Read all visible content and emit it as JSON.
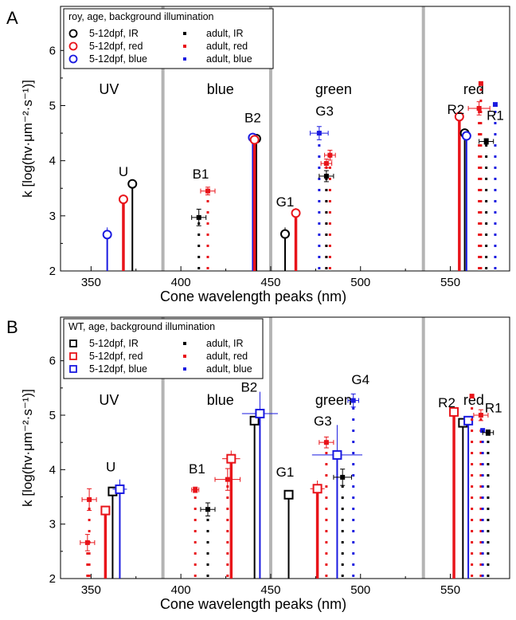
{
  "colors": {
    "ir": "#000000",
    "red": "#e8141a",
    "blue": "#1a1ae0",
    "separator": "#b4b4b4"
  },
  "chart_data": [
    {
      "type": "scatter",
      "panel": "A",
      "xlabel": "Cone wavelength peaks (nm)",
      "ylabel": "k [log(hv·μm⁻²·s⁻¹)]",
      "xlim": [
        333,
        583
      ],
      "ylim": [
        2,
        6.8
      ],
      "x_ticks": [
        350,
        400,
        450,
        500,
        550
      ],
      "y_ticks": [
        2,
        3,
        4,
        5,
        6
      ],
      "legend": {
        "title": "roy, age, background illumination",
        "entries": [
          "5-12dpf, IR",
          "5-12dpf, red",
          "5-12dpf, blue",
          "adult, IR",
          "adult, red",
          "adult, blue"
        ]
      },
      "regions": [
        {
          "label": "UV",
          "x": 360
        },
        {
          "label": "blue",
          "x": 422
        },
        {
          "label": "green",
          "x": 485
        },
        {
          "label": "red",
          "x": 563
        }
      ],
      "separators": [
        390,
        450,
        535
      ],
      "cone_labels": [
        {
          "label": "U",
          "x": 368,
          "y": 3.72
        },
        {
          "label": "B1",
          "x": 411,
          "y": 3.68
        },
        {
          "label": "B2",
          "x": 440,
          "y": 4.7
        },
        {
          "label": "G1",
          "x": 458,
          "y": 3.17
        },
        {
          "label": "G3",
          "x": 480,
          "y": 4.82
        },
        {
          "label": "R2",
          "x": 553,
          "y": 4.85
        },
        {
          "label": "R1",
          "x": 575,
          "y": 4.74
        }
      ],
      "larva": [
        {
          "group": "IR",
          "x": 373,
          "y": 3.58
        },
        {
          "group": "red",
          "x": 368,
          "y": 3.3
        },
        {
          "group": "blue",
          "x": 359,
          "y": 2.66,
          "xerr": 2,
          "yerr": 0.13
        },
        {
          "group": "IR",
          "x": 442,
          "y": 4.4
        },
        {
          "group": "blue",
          "x": 440,
          "y": 4.42
        },
        {
          "group": "red",
          "x": 441,
          "y": 4.38
        },
        {
          "group": "IR",
          "x": 458,
          "y": 2.67,
          "xerr": 2,
          "yerr": 0.12
        },
        {
          "group": "red",
          "x": 464,
          "y": 3.05,
          "xerr": 2,
          "yerr": 0.09
        },
        {
          "group": "red",
          "x": 555,
          "y": 4.8
        },
        {
          "group": "IR",
          "x": 558,
          "y": 4.5
        },
        {
          "group": "blue",
          "x": 559,
          "y": 4.45
        }
      ],
      "adult": [
        {
          "group": "IR",
          "x": 410,
          "y": 2.97,
          "xerr": 4,
          "yerr": 0.15
        },
        {
          "group": "red",
          "x": 415,
          "y": 3.45,
          "xerr": 4,
          "yerr": 0.07
        },
        {
          "group": "blue",
          "x": 477,
          "y": 4.5,
          "xerr": 5,
          "yerr": 0.12
        },
        {
          "group": "red",
          "x": 483,
          "y": 4.1,
          "xerr": 3,
          "yerr": 0.09
        },
        {
          "group": "red",
          "x": 481,
          "y": 3.95,
          "xerr": 3,
          "yerr": 0.08
        },
        {
          "group": "IR",
          "x": 481,
          "y": 3.72,
          "xerr": 4,
          "yerr": 0.1
        },
        {
          "group": "red",
          "x": 567,
          "y": 5.4
        },
        {
          "group": "red",
          "x": 566,
          "y": 4.95,
          "xerr": 6,
          "yerr": 0.12
        },
        {
          "group": "blue",
          "x": 575,
          "y": 5.02
        },
        {
          "group": "IR",
          "x": 570,
          "y": 4.35,
          "xerr": 4,
          "yerr": 0.05
        }
      ]
    },
    {
      "type": "scatter",
      "panel": "B",
      "xlabel": "Cone wavelength peaks (nm)",
      "ylabel": "k [log(hv·μm⁻²·s⁻¹)]",
      "xlim": [
        333,
        583
      ],
      "ylim": [
        2,
        6.8
      ],
      "x_ticks": [
        350,
        400,
        450,
        500,
        550
      ],
      "y_ticks": [
        2,
        3,
        4,
        5,
        6
      ],
      "legend": {
        "title": "WT, age, background illumination",
        "entries": [
          "5-12dpf, IR",
          "5-12dpf, red",
          "5-12dpf, blue",
          "adult, IR",
          "adult, red",
          "adult, blue"
        ]
      },
      "regions": [
        {
          "label": "UV",
          "x": 360
        },
        {
          "label": "blue",
          "x": 422
        },
        {
          "label": "green",
          "x": 485
        },
        {
          "label": "red",
          "x": 563
        }
      ],
      "separators": [
        390,
        450,
        535
      ],
      "cone_labels": [
        {
          "label": "U",
          "x": 361,
          "y": 3.97
        },
        {
          "label": "B1",
          "x": 409,
          "y": 3.93
        },
        {
          "label": "B2",
          "x": 438,
          "y": 5.43
        },
        {
          "label": "G1",
          "x": 458,
          "y": 3.87
        },
        {
          "label": "G3",
          "x": 479,
          "y": 4.81
        },
        {
          "label": "G4",
          "x": 500,
          "y": 5.57
        },
        {
          "label": "R2",
          "x": 548,
          "y": 5.15
        },
        {
          "label": "R1",
          "x": 574,
          "y": 5.05
        }
      ],
      "larva": [
        {
          "group": "IR",
          "x": 362,
          "y": 3.6
        },
        {
          "group": "red",
          "x": 358,
          "y": 3.25
        },
        {
          "group": "blue",
          "x": 366,
          "y": 3.64,
          "xerr": 4,
          "yerr": 0.18
        },
        {
          "group": "red",
          "x": 428,
          "y": 4.2,
          "xerr": 5,
          "yerr": 0.15
        },
        {
          "group": "IR",
          "x": 441,
          "y": 4.9
        },
        {
          "group": "blue",
          "x": 444,
          "y": 5.03,
          "xerr": 10,
          "yerr": 0.4
        },
        {
          "group": "IR",
          "x": 460,
          "y": 3.54,
          "xerr": 2,
          "yerr": 0.06
        },
        {
          "group": "red",
          "x": 476,
          "y": 3.65,
          "xerr": 4,
          "yerr": 0.15
        },
        {
          "group": "blue",
          "x": 487,
          "y": 4.27,
          "xerr": 14,
          "yerr": 0.55
        },
        {
          "group": "red",
          "x": 552,
          "y": 5.06
        },
        {
          "group": "IR",
          "x": 557,
          "y": 4.86
        },
        {
          "group": "blue",
          "x": 560,
          "y": 4.9
        }
      ],
      "adult": [
        {
          "group": "red",
          "x": 349,
          "y": 3.45,
          "xerr": 4,
          "yerr": 0.2
        },
        {
          "group": "red",
          "x": 348,
          "y": 2.66,
          "xerr": 4,
          "yerr": 0.15
        },
        {
          "group": "red",
          "x": 408,
          "y": 3.63,
          "xerr": 2,
          "yerr": 0.05
        },
        {
          "group": "IR",
          "x": 415,
          "y": 3.27,
          "xerr": 4,
          "yerr": 0.12
        },
        {
          "group": "red",
          "x": 426,
          "y": 3.82,
          "xerr": 7,
          "yerr": 0.2
        },
        {
          "group": "red",
          "x": 481,
          "y": 4.5,
          "xerr": 4,
          "yerr": 0.1
        },
        {
          "group": "IR",
          "x": 490,
          "y": 3.86,
          "xerr": 5,
          "yerr": 0.15
        },
        {
          "group": "blue",
          "x": 496,
          "y": 5.27,
          "xerr": 3,
          "yerr": 0.12
        },
        {
          "group": "red",
          "x": 562,
          "y": 5.35
        },
        {
          "group": "red",
          "x": 567,
          "y": 5.0,
          "xerr": 4,
          "yerr": 0.1
        },
        {
          "group": "blue",
          "x": 568,
          "y": 4.72
        },
        {
          "group": "IR",
          "x": 571,
          "y": 4.68,
          "xerr": 3,
          "yerr": 0.05
        }
      ]
    }
  ],
  "panels": [
    {
      "letter": "A"
    },
    {
      "letter": "B"
    }
  ]
}
